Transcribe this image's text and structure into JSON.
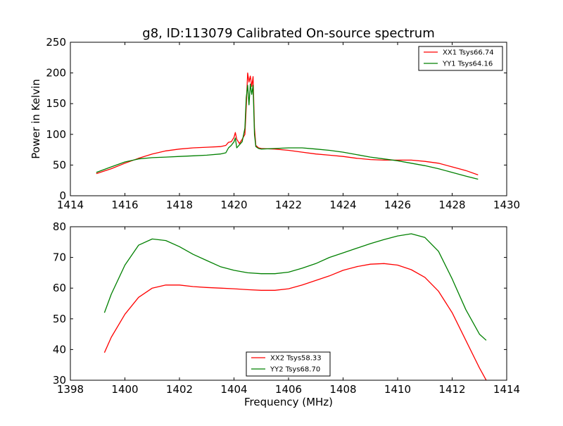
{
  "figure": {
    "title": "g8, ID:113079 Calibrated On-source spectrum"
  },
  "chart_data": [
    {
      "type": "line",
      "title": "g8, ID:113079 Calibrated On-source spectrum",
      "xlabel": "",
      "ylabel": "Power in Kelvin",
      "xlim": [
        1414,
        1430
      ],
      "ylim": [
        0,
        250
      ],
      "xticks": [
        1414,
        1416,
        1418,
        1420,
        1422,
        1424,
        1426,
        1428,
        1430
      ],
      "yticks": [
        0,
        50,
        100,
        150,
        200,
        250
      ],
      "grid": false,
      "legend_position": "top-right",
      "series": [
        {
          "name": "XX1 Tsys66.74",
          "color": "#ff0000",
          "x": [
            1414.95,
            1415.5,
            1416.0,
            1416.5,
            1417.0,
            1417.5,
            1418.0,
            1418.5,
            1419.0,
            1419.5,
            1419.7,
            1419.8,
            1419.9,
            1420.0,
            1420.05,
            1420.1,
            1420.2,
            1420.3,
            1420.4,
            1420.45,
            1420.5,
            1420.55,
            1420.6,
            1420.65,
            1420.7,
            1420.75,
            1420.8,
            1420.9,
            1421.0,
            1421.5,
            1422.0,
            1422.5,
            1423.0,
            1423.5,
            1424.0,
            1424.5,
            1425.0,
            1425.5,
            1426.0,
            1426.5,
            1427.0,
            1427.5,
            1428.0,
            1428.5,
            1428.95
          ],
          "y": [
            36,
            44,
            53,
            61,
            68,
            73,
            76,
            78,
            79,
            80,
            82,
            87,
            88,
            95,
            103,
            92,
            85,
            92,
            100,
            145,
            200,
            185,
            195,
            178,
            194,
            110,
            82,
            78,
            77,
            76,
            74,
            71,
            68,
            66,
            64,
            61,
            59,
            58,
            58,
            58,
            56,
            53,
            47,
            41,
            34
          ]
        },
        {
          "name": "YY1 Tsys64.16",
          "color": "#008000",
          "x": [
            1414.95,
            1415.5,
            1416.0,
            1416.5,
            1417.0,
            1417.5,
            1418.0,
            1418.5,
            1419.0,
            1419.5,
            1419.7,
            1419.8,
            1419.9,
            1420.0,
            1420.05,
            1420.1,
            1420.2,
            1420.3,
            1420.4,
            1420.45,
            1420.5,
            1420.55,
            1420.6,
            1420.65,
            1420.7,
            1420.75,
            1420.8,
            1420.9,
            1421.0,
            1421.5,
            1422.0,
            1422.5,
            1423.0,
            1423.5,
            1424.0,
            1424.5,
            1425.0,
            1425.5,
            1426.0,
            1426.5,
            1427.0,
            1427.5,
            1428.0,
            1428.5,
            1428.95
          ],
          "y": [
            38,
            47,
            55,
            60,
            62,
            63,
            64,
            65,
            66,
            68,
            70,
            78,
            82,
            88,
            94,
            78,
            83,
            88,
            110,
            160,
            180,
            148,
            182,
            165,
            180,
            100,
            80,
            77,
            76,
            77,
            78,
            78,
            76,
            74,
            71,
            67,
            63,
            60,
            57,
            53,
            49,
            44,
            38,
            32,
            27
          ]
        }
      ]
    },
    {
      "type": "line",
      "title": "",
      "xlabel": "Frequency (MHz)",
      "ylabel": "",
      "xlim": [
        1398,
        1414
      ],
      "ylim": [
        30,
        80
      ],
      "xticks": [
        1398,
        1400,
        1402,
        1404,
        1406,
        1408,
        1410,
        1412,
        1414
      ],
      "yticks": [
        30,
        40,
        50,
        60,
        70,
        80
      ],
      "grid": false,
      "legend_position": "bottom-center",
      "series": [
        {
          "name": "XX2 Tsys58.33",
          "color": "#ff0000",
          "x": [
            1399.25,
            1399.5,
            1400.0,
            1400.5,
            1401.0,
            1401.5,
            1402.0,
            1402.5,
            1403.0,
            1403.5,
            1404.0,
            1404.5,
            1405.0,
            1405.5,
            1406.0,
            1406.5,
            1407.0,
            1407.5,
            1408.0,
            1408.5,
            1409.0,
            1409.5,
            1410.0,
            1410.5,
            1411.0,
            1411.5,
            1412.0,
            1412.5,
            1413.0,
            1413.25
          ],
          "y": [
            39,
            44,
            51.5,
            57,
            60,
            61,
            61,
            60.5,
            60.2,
            60,
            59.8,
            59.5,
            59.3,
            59.3,
            59.8,
            61,
            62.5,
            64,
            65.8,
            67,
            67.8,
            68,
            67.5,
            66,
            63.5,
            59,
            52,
            43,
            34,
            30
          ]
        },
        {
          "name": "YY2 Tsys68.70",
          "color": "#008000",
          "x": [
            1399.25,
            1399.5,
            1400.0,
            1400.5,
            1401.0,
            1401.5,
            1402.0,
            1402.5,
            1403.0,
            1403.5,
            1404.0,
            1404.5,
            1405.0,
            1405.5,
            1406.0,
            1406.5,
            1407.0,
            1407.5,
            1408.0,
            1408.5,
            1409.0,
            1409.5,
            1410.0,
            1410.5,
            1411.0,
            1411.5,
            1412.0,
            1412.5,
            1413.0,
            1413.25
          ],
          "y": [
            52,
            58,
            67.5,
            74,
            76,
            75.5,
            73.5,
            71,
            69,
            67,
            65.8,
            65,
            64.7,
            64.7,
            65.2,
            66.5,
            68,
            70,
            71.5,
            73,
            74.5,
            75.8,
            77,
            77.7,
            76.5,
            72,
            63,
            53,
            45,
            43
          ]
        }
      ]
    }
  ]
}
